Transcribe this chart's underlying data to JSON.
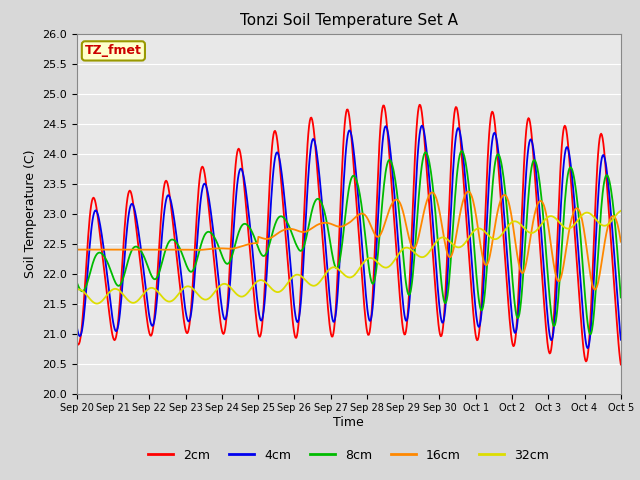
{
  "title": "Tonzi Soil Temperature Set A",
  "ylabel": "Soil Temperature (C)",
  "xlabel": "Time",
  "legend_label": "TZ_fmet",
  "series_labels": [
    "2cm",
    "4cm",
    "8cm",
    "16cm",
    "32cm"
  ],
  "series_colors": [
    "#ff0000",
    "#0000ee",
    "#00bb00",
    "#ff8800",
    "#dddd00"
  ],
  "ylim": [
    20.0,
    26.0
  ],
  "yticks": [
    20.0,
    20.5,
    21.0,
    21.5,
    22.0,
    22.5,
    23.0,
    23.5,
    24.0,
    24.5,
    25.0,
    25.5,
    26.0
  ],
  "xtick_labels": [
    "Sep 20",
    "Sep 21",
    "Sep 22",
    "Sep 23",
    "Sep 24",
    "Sep 25",
    "Sep 26",
    "Sep 27",
    "Sep 28",
    "Sep 29",
    "Sep 30",
    "Oct 1",
    "Oct 2",
    "Oct 3",
    "Oct 4",
    "Oct 5"
  ],
  "bg_color": "#e8e8e8",
  "grid_color": "#ffffff",
  "line_width": 1.3,
  "n_points": 720
}
